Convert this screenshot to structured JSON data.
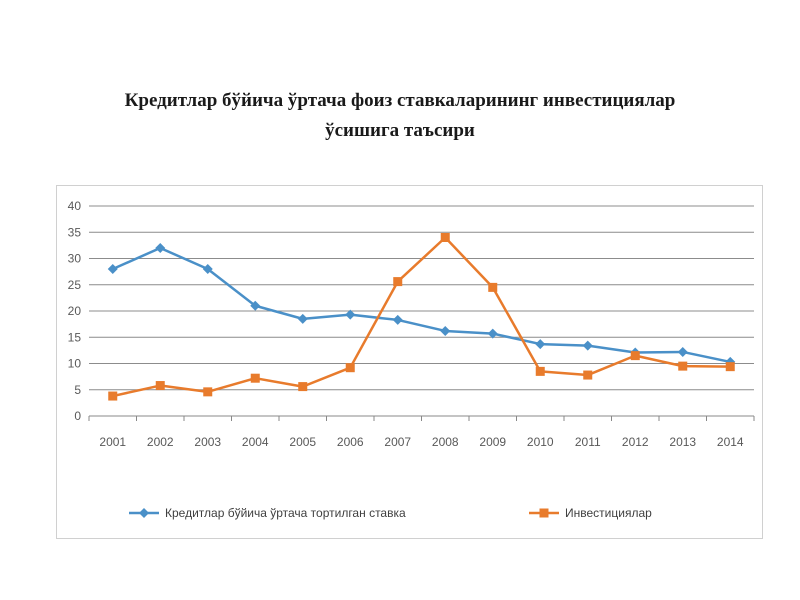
{
  "slide": {
    "title_line1": "Кредитлар бўйича ўртача фоиз ставкаларининг инвестициялар",
    "title_line2": "ўсишига таъсири"
  },
  "chart_data": {
    "type": "line",
    "categories": [
      "2001",
      "2002",
      "2003",
      "2004",
      "2005",
      "2006",
      "2007",
      "2008",
      "2009",
      "2010",
      "2011",
      "2012",
      "2013",
      "2014"
    ],
    "y_ticks": [
      "0",
      "5",
      "10",
      "15",
      "20",
      "25",
      "30",
      "35",
      "40"
    ],
    "ylim": [
      0,
      40
    ],
    "grid": true,
    "legend_position": "bottom",
    "series": [
      {
        "name": "Кредитлар бўйича ўртача тортилган ставка",
        "color": "#4a90c8",
        "marker": "diamond",
        "values": [
          28,
          32,
          28,
          21,
          18.5,
          19.3,
          18.3,
          16.2,
          15.7,
          13.7,
          13.4,
          12.1,
          12.2,
          10.3
        ]
      },
      {
        "name": "Инвестициялар",
        "color": "#e87b2c",
        "marker": "square",
        "values": [
          3.8,
          5.8,
          4.6,
          7.2,
          5.6,
          9.2,
          25.6,
          34,
          24.5,
          8.5,
          7.8,
          11.5,
          9.5,
          9.4
        ]
      }
    ]
  }
}
